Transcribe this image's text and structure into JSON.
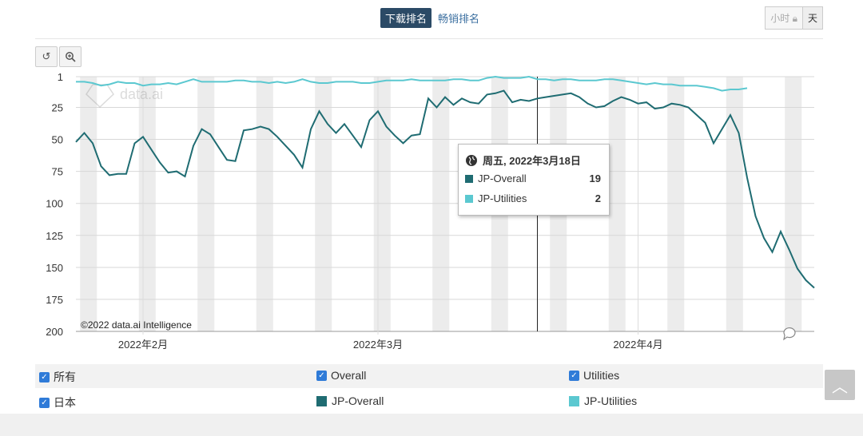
{
  "tabs": {
    "active": "下载排名",
    "other": "畅销排名"
  },
  "granularity": {
    "hour": "小时",
    "hour_icon": "lock-icon",
    "day": "天"
  },
  "tools": {
    "reset_icon": "reset-zoom-icon",
    "zoom_icon": "zoom-icon"
  },
  "watermark": "data.ai",
  "copyright": "©2022 data.ai Intelligence",
  "colors": {
    "overall": "#1f6c72",
    "utilities": "#5bc8d0",
    "band": "#ececec",
    "checkbox": "#2f7bd8"
  },
  "chart_data": {
    "type": "line",
    "y_reversed": true,
    "ylim": [
      1,
      200
    ],
    "y_ticks": [
      1,
      25,
      50,
      75,
      100,
      125,
      150,
      175,
      200
    ],
    "x_tick_labels": [
      {
        "label": "2022年2月",
        "day": 8
      },
      {
        "label": "2022年3月",
        "day": 36
      },
      {
        "label": "2022年4月",
        "day": 67
      }
    ],
    "weekend_bands": [
      0.5,
      7.5,
      14.5,
      21.5,
      28.5,
      35.5,
      42.5,
      49.5,
      56.5,
      63.5,
      70.5,
      77.5,
      84.5
    ],
    "crosshair_day": 55,
    "series": [
      {
        "name": "JP-Overall",
        "color": "#1f6c72",
        "values": [
          52,
          45,
          53,
          71,
          78,
          77,
          77,
          53,
          48,
          58,
          68,
          76,
          75,
          79,
          55,
          42,
          46,
          56,
          66,
          67,
          43,
          42,
          40,
          42,
          48,
          55,
          62,
          72,
          42,
          28,
          38,
          45,
          38,
          47,
          56,
          35,
          28,
          40,
          47,
          53,
          47,
          46,
          18,
          25,
          17,
          23,
          18,
          21,
          22,
          15,
          14,
          12,
          21,
          19,
          20,
          18,
          17,
          16,
          15,
          14,
          17,
          22,
          25,
          24,
          20,
          17,
          19,
          22,
          21,
          26,
          25,
          22,
          23,
          25,
          31,
          37,
          53,
          42,
          31,
          45,
          80,
          110,
          127,
          138,
          122,
          136,
          151,
          160,
          166
        ]
      },
      {
        "name": "JP-Utilities",
        "color": "#5bc8d0",
        "values": [
          5,
          5,
          6,
          8,
          7,
          5,
          6,
          6,
          8,
          7,
          7,
          6,
          7,
          5,
          3,
          5,
          5,
          5,
          5,
          4,
          4,
          5,
          5,
          6,
          5,
          6,
          5,
          3,
          5,
          6,
          6,
          5,
          5,
          5,
          6,
          6,
          5,
          4,
          4,
          4,
          3,
          4,
          4,
          4,
          4,
          3,
          3,
          4,
          4,
          2,
          1,
          2,
          2,
          2,
          1,
          3,
          3,
          4,
          3,
          3,
          4,
          4,
          4,
          3,
          3,
          4,
          5,
          6,
          7,
          6,
          7,
          7,
          8,
          8,
          8,
          9,
          10,
          12,
          11,
          11,
          10
        ]
      }
    ]
  },
  "tooltip": {
    "icon": "globe-icon",
    "date": "周五, 2022年3月18日",
    "rows": [
      {
        "name": "JP-Overall",
        "value": "19",
        "color": "#1f6c72"
      },
      {
        "name": "JP-Utilities",
        "value": "2",
        "color": "#5bc8d0"
      }
    ]
  },
  "legend": {
    "all": "所有",
    "overall": "Overall",
    "utilities": "Utilities",
    "japan": "日本",
    "jp_overall": "JP-Overall",
    "jp_utilities": "JP-Utilities"
  },
  "scroll_top_icon": "chevron-up-icon",
  "comment_icon": "comment-icon"
}
